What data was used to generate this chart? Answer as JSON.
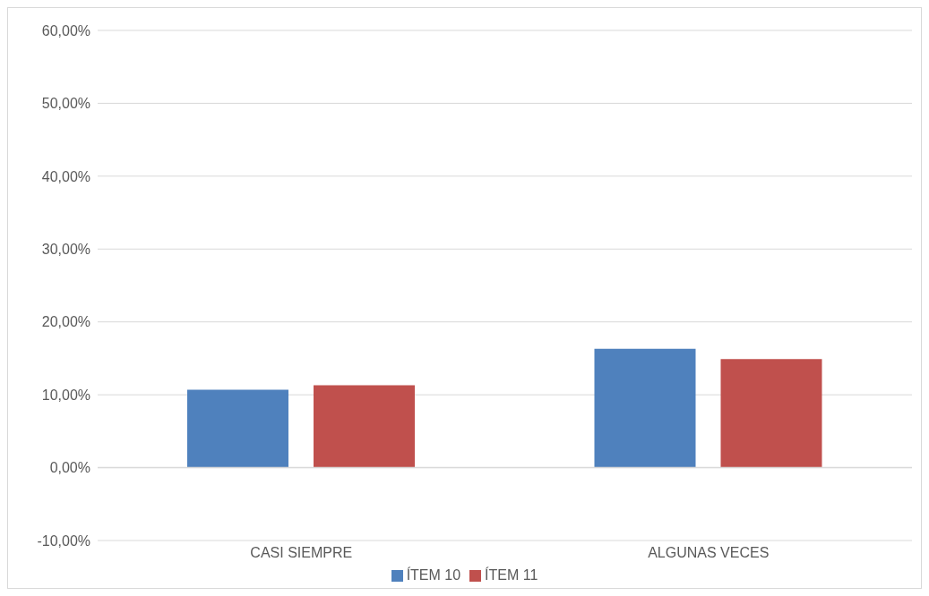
{
  "chart_data": {
    "type": "bar",
    "categories": [
      "CASI SIEMPRE",
      "ALGUNAS VECES"
    ],
    "series": [
      {
        "name": "ÍTEM 10",
        "color": "#4f81bd",
        "values": [
          10.7,
          16.3
        ]
      },
      {
        "name": "ÍTEM 11",
        "color": "#c0504d",
        "values": [
          11.3,
          14.9
        ]
      }
    ],
    "ylim": [
      -10,
      60
    ],
    "yticks": [
      {
        "value": -10,
        "label": "-10,00%"
      },
      {
        "value": 0,
        "label": "0,00%"
      },
      {
        "value": 10,
        "label": "10,00%"
      },
      {
        "value": 20,
        "label": "20,00%"
      },
      {
        "value": 30,
        "label": "30,00%"
      },
      {
        "value": 40,
        "label": "40,00%"
      },
      {
        "value": 50,
        "label": "50,00%"
      },
      {
        "value": 60,
        "label": "60,00%"
      }
    ],
    "grid": "y",
    "legend": "bottom"
  }
}
